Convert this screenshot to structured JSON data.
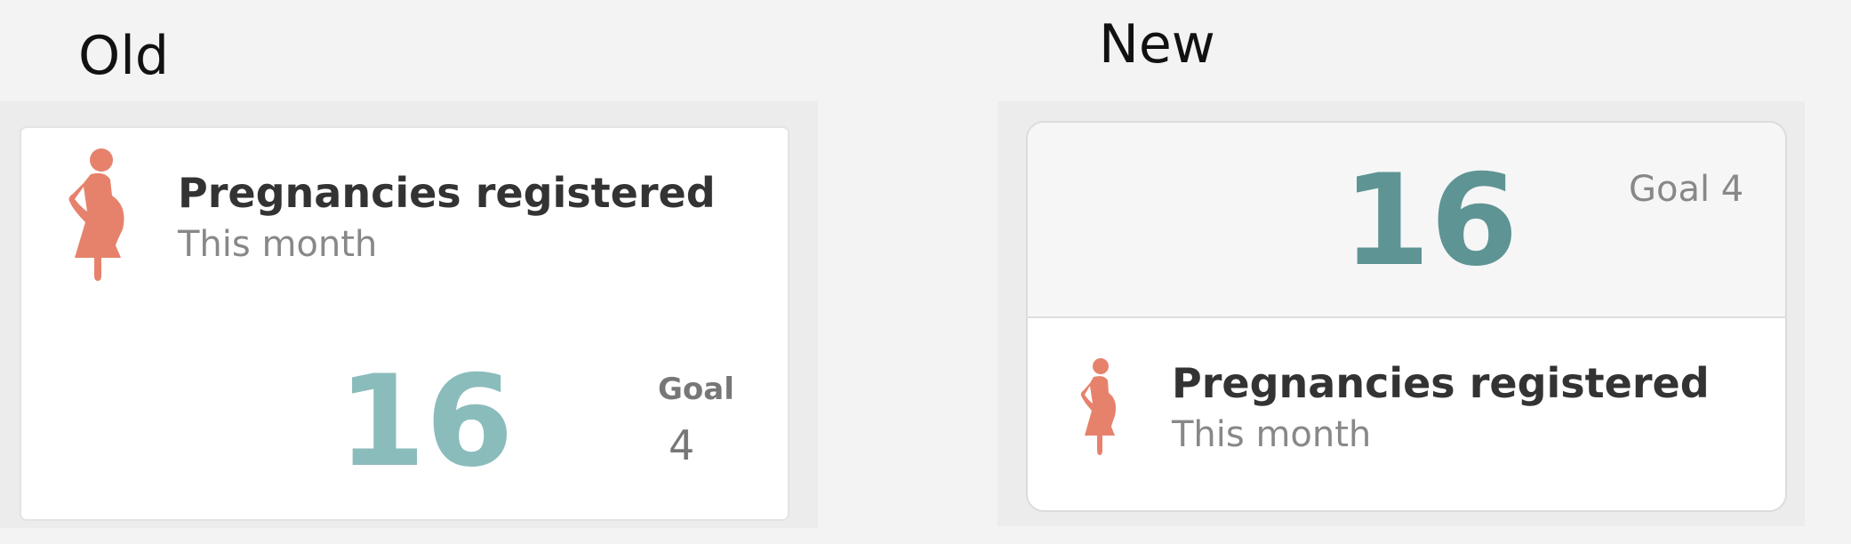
{
  "labels": {
    "old": "Old",
    "new": "New"
  },
  "old_card": {
    "title": "Pregnancies registered",
    "subtitle": "This month",
    "value": "16",
    "goal_label": "Goal",
    "goal_value": "4",
    "icon": "pregnant-woman-icon"
  },
  "new_card": {
    "title": "Pregnancies registered",
    "subtitle": "This month",
    "value": "16",
    "goal": "Goal 4",
    "icon": "pregnant-woman-icon"
  },
  "colors": {
    "icon": "#e6826c",
    "old_value": "#8bbcbc",
    "new_value": "#5e9494"
  }
}
